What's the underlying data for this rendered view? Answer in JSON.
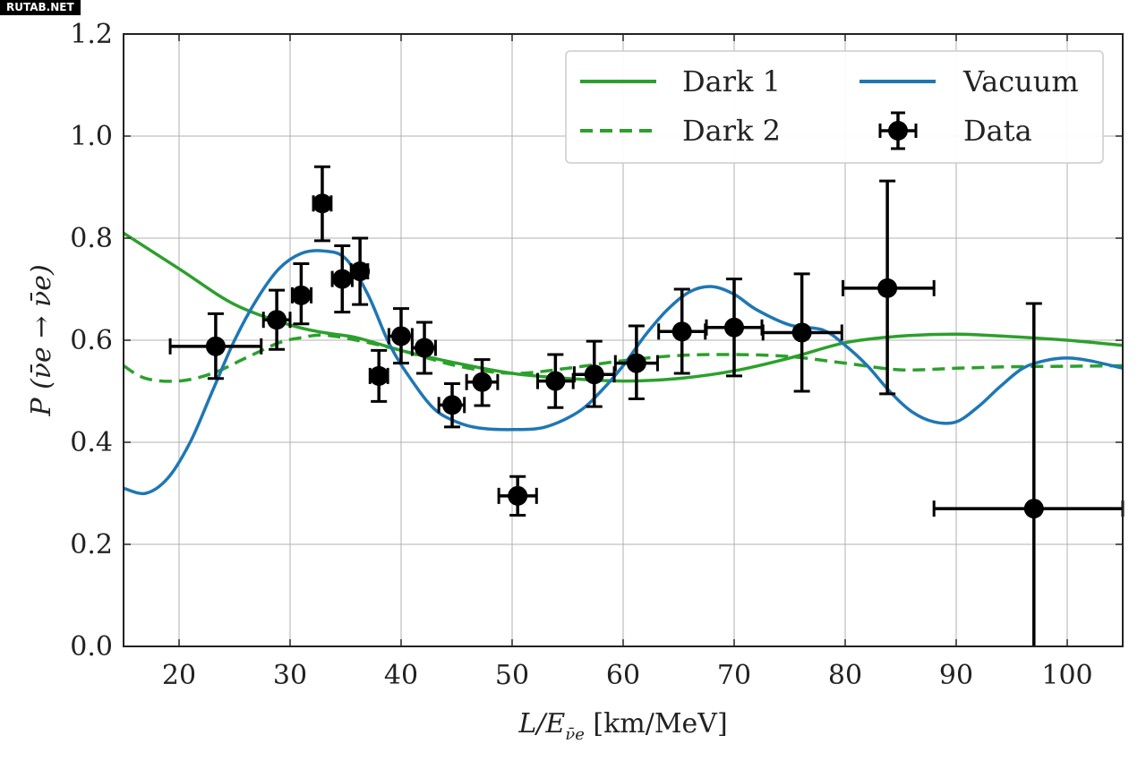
{
  "watermark": "RUTAB.NET",
  "chart_data": {
    "type": "line",
    "xlabel": "L/E",
    "xlabel_sub": "ν̄e",
    "xlabel_unit": " [km/MeV]",
    "ylabel": "P (ν̄e → ν̄e)",
    "xlim": [
      15,
      105
    ],
    "ylim": [
      0.0,
      1.2
    ],
    "xticks": [
      20,
      30,
      40,
      50,
      60,
      70,
      80,
      90,
      100
    ],
    "yticks": [
      0.0,
      0.2,
      0.4,
      0.6,
      0.8,
      1.0,
      1.2
    ],
    "ytick_labels": [
      "0.0",
      "0.2",
      "0.4",
      "0.6",
      "0.8",
      "1.0",
      "1.2"
    ],
    "grid": true,
    "legend_position": "top-right",
    "series": [
      {
        "name": "Dark 1",
        "color": "#2ca02c",
        "style": "solid",
        "x": [
          15,
          20,
          25,
          30,
          33,
          36,
          40,
          45,
          50,
          55,
          60,
          65,
          70,
          75,
          80,
          85,
          90,
          95,
          100,
          105
        ],
        "y": [
          0.81,
          0.74,
          0.67,
          0.63,
          0.615,
          0.605,
          0.58,
          0.555,
          0.535,
          0.525,
          0.52,
          0.525,
          0.54,
          0.565,
          0.595,
          0.608,
          0.612,
          0.607,
          0.6,
          0.59
        ]
      },
      {
        "name": "Dark 2",
        "color": "#2ca02c",
        "style": "dashed",
        "x": [
          15,
          17,
          20,
          23,
          26,
          29,
          31,
          33,
          36,
          40,
          45,
          50,
          55,
          60,
          65,
          70,
          75,
          80,
          85,
          90,
          95,
          100,
          105
        ],
        "y": [
          0.55,
          0.525,
          0.52,
          0.535,
          0.565,
          0.595,
          0.605,
          0.61,
          0.6,
          0.58,
          0.55,
          0.535,
          0.545,
          0.56,
          0.57,
          0.572,
          0.568,
          0.555,
          0.542,
          0.545,
          0.548,
          0.549,
          0.55
        ]
      },
      {
        "name": "Vacuum",
        "color": "#1f77b4",
        "style": "solid",
        "x": [
          15,
          17,
          19,
          21,
          23,
          25,
          27,
          29,
          31,
          33,
          35,
          37,
          39,
          41,
          43,
          45,
          47,
          50,
          53,
          56,
          58,
          60,
          62,
          64,
          66,
          68,
          70,
          72,
          75,
          78,
          80,
          82,
          84,
          86,
          88,
          90,
          92,
          94,
          96,
          98,
          100,
          102,
          105
        ],
        "y": [
          0.31,
          0.3,
          0.33,
          0.4,
          0.5,
          0.6,
          0.68,
          0.74,
          0.77,
          0.775,
          0.76,
          0.69,
          0.59,
          0.52,
          0.465,
          0.44,
          0.428,
          0.425,
          0.43,
          0.46,
          0.5,
          0.55,
          0.61,
          0.66,
          0.695,
          0.705,
          0.69,
          0.66,
          0.63,
          0.62,
          0.59,
          0.55,
          0.5,
          0.46,
          0.44,
          0.44,
          0.47,
          0.51,
          0.545,
          0.56,
          0.565,
          0.56,
          0.545
        ]
      }
    ],
    "data_series": {
      "name": "Data",
      "color": "#000000",
      "points": [
        {
          "x": 23.3,
          "y": 0.588,
          "xerr": [
            19.2,
            27.4
          ],
          "yerr": [
            0.525,
            0.652
          ]
        },
        {
          "x": 28.8,
          "y": 0.64,
          "xerr": [
            27.6,
            30.0
          ],
          "yerr": [
            0.582,
            0.698
          ]
        },
        {
          "x": 31.0,
          "y": 0.688,
          "xerr": [
            30.2,
            31.9
          ],
          "yerr": [
            0.632,
            0.75
          ]
        },
        {
          "x": 32.9,
          "y": 0.868,
          "xerr": [
            32.1,
            33.7
          ],
          "yerr": [
            0.795,
            0.94
          ]
        },
        {
          "x": 34.7,
          "y": 0.72,
          "xerr": [
            33.8,
            35.6
          ],
          "yerr": [
            0.655,
            0.785
          ]
        },
        {
          "x": 36.3,
          "y": 0.735,
          "xerr": [
            35.5,
            37.0
          ],
          "yerr": [
            0.67,
            0.8
          ]
        },
        {
          "x": 38.0,
          "y": 0.53,
          "xerr": [
            37.2,
            38.8
          ],
          "yerr": [
            0.48,
            0.58
          ]
        },
        {
          "x": 40.0,
          "y": 0.608,
          "xerr": [
            38.9,
            41.0
          ],
          "yerr": [
            0.555,
            0.662
          ]
        },
        {
          "x": 42.1,
          "y": 0.585,
          "xerr": [
            41.0,
            43.1
          ],
          "yerr": [
            0.535,
            0.635
          ]
        },
        {
          "x": 44.6,
          "y": 0.473,
          "xerr": [
            43.4,
            45.7
          ],
          "yerr": [
            0.43,
            0.515
          ]
        },
        {
          "x": 47.3,
          "y": 0.518,
          "xerr": [
            45.9,
            48.7
          ],
          "yerr": [
            0.472,
            0.562
          ]
        },
        {
          "x": 50.5,
          "y": 0.295,
          "xerr": [
            48.8,
            52.2
          ],
          "yerr": [
            0.257,
            0.333
          ]
        },
        {
          "x": 53.9,
          "y": 0.52,
          "xerr": [
            52.3,
            55.5
          ],
          "yerr": [
            0.468,
            0.572
          ]
        },
        {
          "x": 57.4,
          "y": 0.533,
          "xerr": [
            55.6,
            59.2
          ],
          "yerr": [
            0.47,
            0.598
          ]
        },
        {
          "x": 61.2,
          "y": 0.555,
          "xerr": [
            59.3,
            63.1
          ],
          "yerr": [
            0.485,
            0.628
          ]
        },
        {
          "x": 65.3,
          "y": 0.617,
          "xerr": [
            63.2,
            67.4
          ],
          "yerr": [
            0.535,
            0.7
          ]
        },
        {
          "x": 70.0,
          "y": 0.625,
          "xerr": [
            67.5,
            72.5
          ],
          "yerr": [
            0.53,
            0.72
          ]
        },
        {
          "x": 76.1,
          "y": 0.615,
          "xerr": [
            72.6,
            79.7
          ],
          "yerr": [
            0.5,
            0.73
          ]
        },
        {
          "x": 83.8,
          "y": 0.702,
          "xerr": [
            79.8,
            88.0
          ],
          "yerr": [
            0.495,
            0.912
          ]
        },
        {
          "x": 97.0,
          "y": 0.27,
          "xerr": [
            88.0,
            105.0
          ],
          "yerr": [
            0.0,
            0.672
          ]
        }
      ]
    }
  }
}
